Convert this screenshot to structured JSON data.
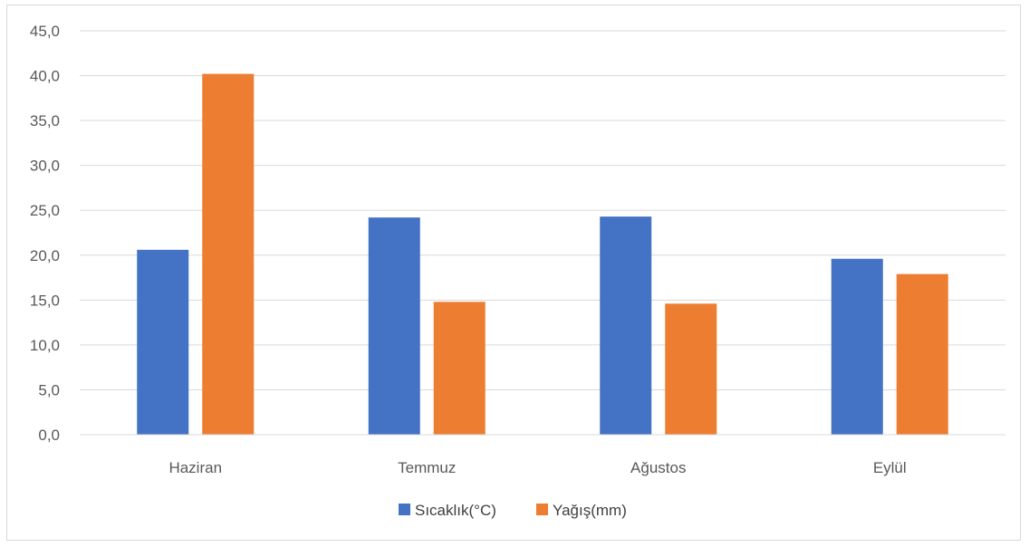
{
  "chart_data": {
    "type": "bar",
    "categories": [
      "Haziran",
      "Temmuz",
      "Ağustos",
      "Eylül"
    ],
    "series": [
      {
        "name": "Sıcaklık(°C)",
        "values": [
          20.6,
          24.2,
          24.3,
          19.6
        ],
        "color": "#4472c4"
      },
      {
        "name": "Yağış(mm)",
        "values": [
          40.2,
          14.8,
          14.6,
          17.9
        ],
        "color": "#ed7d31"
      }
    ],
    "ylim": [
      0,
      45
    ],
    "yticks": [
      "0,0",
      "5,0",
      "10,0",
      "15,0",
      "20,0",
      "25,0",
      "30,0",
      "35,0",
      "40,0",
      "45,0"
    ],
    "grid": true,
    "legend_position": "bottom"
  }
}
